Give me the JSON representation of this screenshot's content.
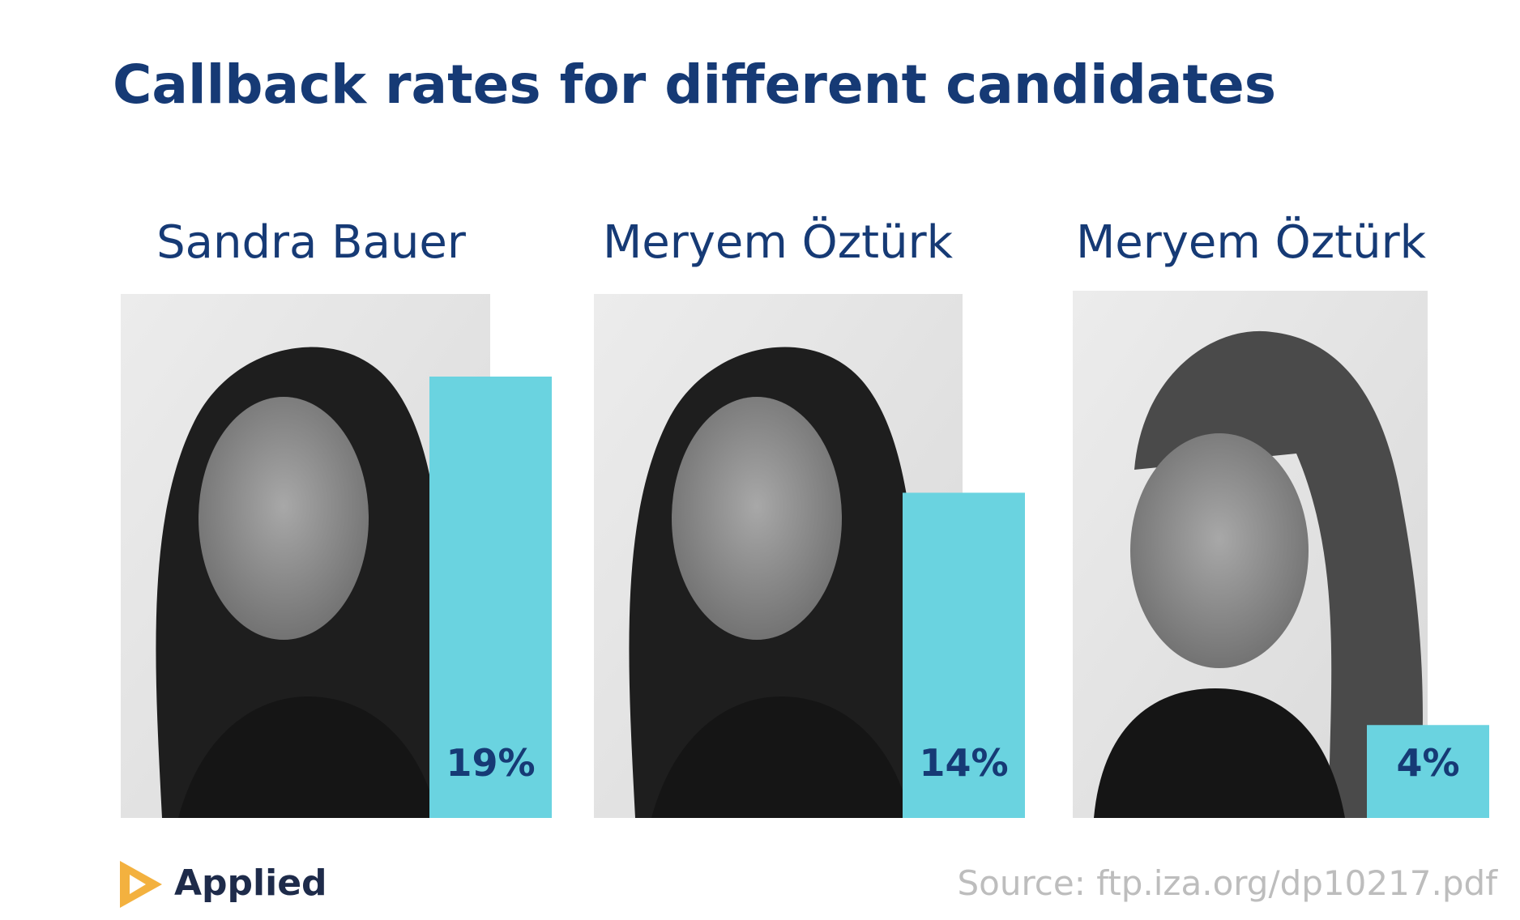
{
  "chart_data": {
    "type": "bar",
    "title": "Callback rates for different candidates",
    "categories": [
      "Sandra Bauer",
      "Meryem Öztürk",
      "Meryem Öztürk"
    ],
    "values": [
      19,
      14,
      4
    ],
    "value_labels": [
      "19%",
      "14%",
      "4%"
    ],
    "color": "#6ad3e0",
    "brand": "Applied",
    "source": "Source: ftp.iza.org/dp10217.pdf"
  }
}
